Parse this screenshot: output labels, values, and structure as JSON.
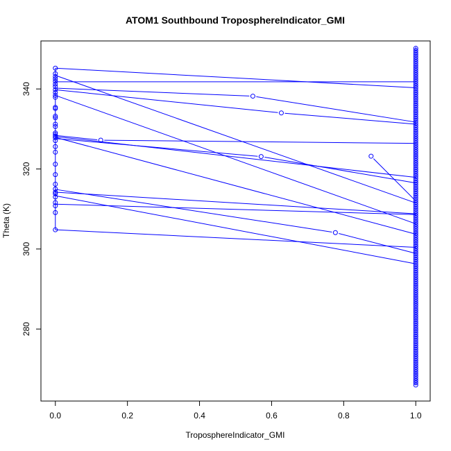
{
  "chart_data": {
    "type": "line",
    "title": "ATOM1 Southbound TroposphereIndicator_GMI",
    "xlabel": "TroposphereIndicator_GMI",
    "ylabel": "Theta (K)",
    "xlim": [
      -0.04,
      1.04
    ],
    "ylim": [
      262,
      352
    ],
    "xticks": [
      0.0,
      0.2,
      0.4,
      0.6,
      0.8,
      1.0
    ],
    "xtick_labels": [
      "0.0",
      "0.2",
      "0.4",
      "0.6",
      "0.8",
      "1.0"
    ],
    "yticks": [
      280,
      300,
      320,
      340
    ],
    "ytick_labels": [
      "280",
      "300",
      "320",
      "340"
    ],
    "color": "#0000ff",
    "grid": false,
    "segments": [
      [
        [
          0,
          345.2
        ],
        [
          1,
          340.3
        ]
      ],
      [
        [
          0,
          341.8
        ],
        [
          1,
          341.8
        ]
      ],
      [
        [
          0,
          343.4
        ],
        [
          1,
          311.5
        ]
      ],
      [
        [
          0,
          340.2
        ],
        [
          0.548,
          338.2
        ],
        [
          1,
          331.7
        ]
      ],
      [
        [
          0,
          339.8
        ],
        [
          0.627,
          334.0
        ],
        [
          1,
          331.2
        ]
      ],
      [
        [
          0,
          338.4
        ],
        [
          1,
          306.3
        ]
      ],
      [
        [
          0,
          328.4
        ],
        [
          0.126,
          327.2
        ],
        [
          1,
          326.4
        ]
      ],
      [
        [
          0,
          327.6
        ],
        [
          0.571,
          323.1
        ],
        [
          1,
          316.5
        ]
      ],
      [
        [
          0,
          328.1
        ],
        [
          1,
          317.9
        ]
      ],
      [
        [
          0,
          327.9
        ],
        [
          1,
          303.7
        ]
      ],
      [
        [
          0,
          314.9
        ],
        [
          0.777,
          304.1
        ],
        [
          1,
          298.9
        ]
      ],
      [
        [
          0,
          314.2
        ],
        [
          1,
          308.8
        ]
      ],
      [
        [
          0,
          313.3
        ],
        [
          1,
          296.3
        ]
      ],
      [
        [
          0,
          311.2
        ],
        [
          1,
          308.6
        ]
      ],
      [
        [
          0,
          304.8
        ],
        [
          1,
          300.4
        ]
      ],
      [
        [
          0.876,
          323.2
        ],
        [
          1,
          312.0
        ]
      ]
    ],
    "x0_values": [
      345.2,
      343.8,
      343.1,
      342.5,
      341.9,
      341.2,
      340.6,
      339.8,
      339.1,
      338.4,
      337.9,
      335.4,
      335.1,
      333.2,
      332.8,
      331.2,
      330.6,
      329.0,
      328.6,
      328.2,
      327.8,
      327.1,
      325.6,
      324.2,
      321.2,
      318.6,
      316.2,
      315.0,
      314.2,
      313.8,
      313.0,
      311.6,
      310.8,
      309.1,
      304.8
    ],
    "x1_range": [
      266,
      350.5
    ]
  }
}
